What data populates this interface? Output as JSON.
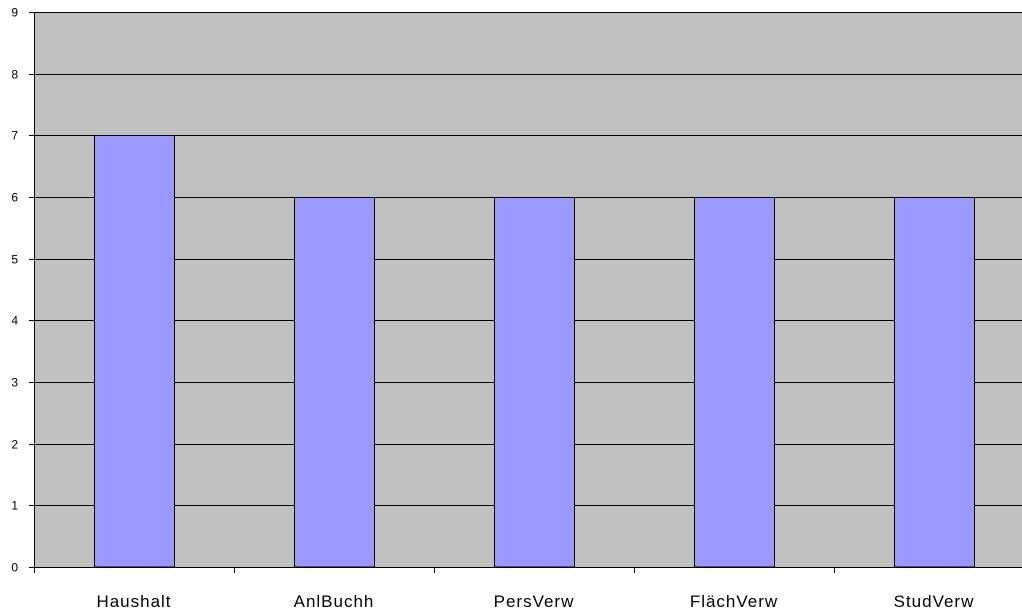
{
  "chart_data": {
    "type": "bar",
    "categories": [
      "Haushalt",
      "AnlBuchh",
      "PersVerw",
      "FlächVerw",
      "StudVerw"
    ],
    "values": [
      7,
      6,
      6,
      6,
      6
    ],
    "title": "",
    "xlabel": "",
    "ylabel": "",
    "ylim": [
      0,
      9
    ],
    "yticks": [
      0,
      1,
      2,
      3,
      4,
      5,
      6,
      7,
      8,
      9
    ],
    "grid": true,
    "legend": "none",
    "colors": {
      "plot_background": "#c0c0c0",
      "bar_fill": "#9999ff",
      "bar_stroke": "#000000",
      "gridline": "#000000"
    }
  }
}
